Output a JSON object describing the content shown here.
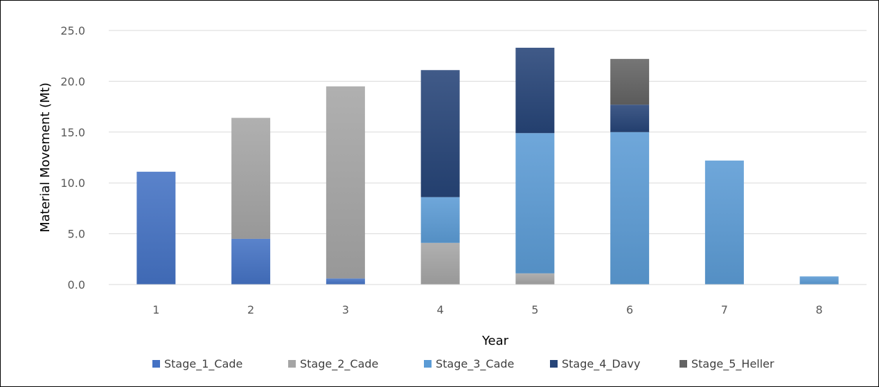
{
  "chart_data": {
    "type": "bar",
    "stacked": true,
    "categories": [
      "1",
      "2",
      "3",
      "4",
      "5",
      "6",
      "7",
      "8"
    ],
    "xlabel": "Year",
    "ylabel": "Material Movement (Mt)",
    "ylim": [
      0,
      25
    ],
    "yticks": [
      "0.0",
      "5.0",
      "10.0",
      "15.0",
      "20.0",
      "25.0"
    ],
    "grid": true,
    "legend_position": "bottom",
    "series": [
      {
        "name": "Stage_1_Cade",
        "color": "#4472C4",
        "values": [
          11.1,
          4.5,
          0.6,
          0.0,
          0.0,
          0.0,
          0.0,
          0.0
        ]
      },
      {
        "name": "Stage_2_Cade",
        "color": "#A5A5A5",
        "values": [
          0.0,
          11.9,
          18.9,
          4.1,
          1.1,
          0.0,
          0.0,
          0.0
        ]
      },
      {
        "name": "Stage_3_Cade",
        "color": "#5B9BD5",
        "values": [
          0.0,
          0.0,
          0.0,
          4.5,
          13.8,
          15.0,
          12.2,
          0.8
        ]
      },
      {
        "name": "Stage_4_Davy",
        "color": "#264478",
        "values": [
          0.0,
          0.0,
          0.0,
          12.5,
          8.4,
          2.7,
          0.0,
          0.0
        ]
      },
      {
        "name": "Stage_5_Heller",
        "color": "#636363",
        "values": [
          0.0,
          0.0,
          0.0,
          0.0,
          0.0,
          4.5,
          0.0,
          0.0
        ]
      }
    ]
  }
}
